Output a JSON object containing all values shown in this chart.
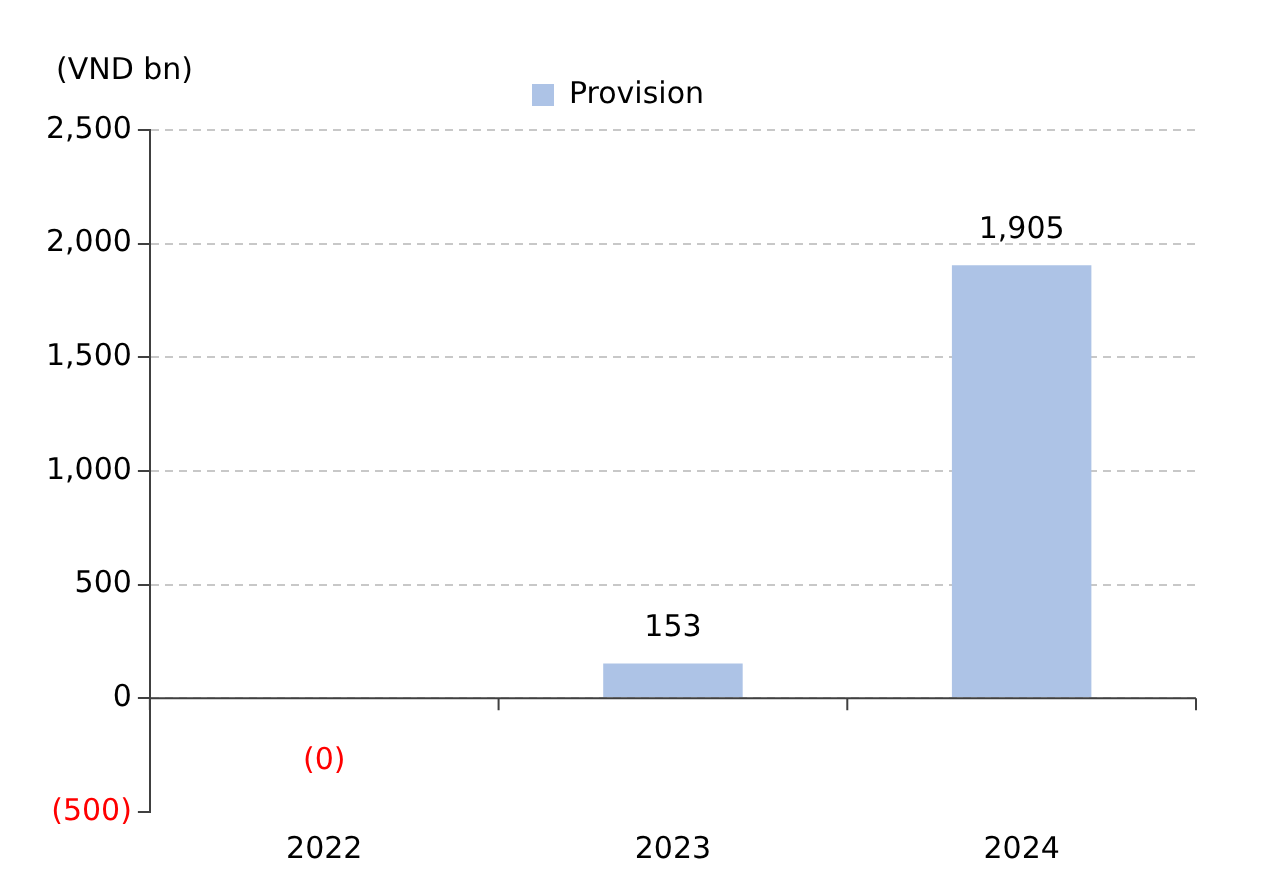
{
  "chart_data": {
    "type": "bar",
    "ylabel": "(VND bn)",
    "categories": [
      "2022",
      "2023",
      "2024"
    ],
    "series": [
      {
        "name": "Provision",
        "color": "#adc3e6",
        "values": [
          0,
          153,
          1905
        ],
        "value_labels": [
          "(0)",
          "153",
          "1,905"
        ]
      }
    ],
    "ylim": [
      -500,
      2500
    ],
    "yticks": [
      {
        "value": -500,
        "label": "(500)"
      },
      {
        "value": 0,
        "label": "0"
      },
      {
        "value": 500,
        "label": "500"
      },
      {
        "value": 1000,
        "label": "1,000"
      },
      {
        "value": 1500,
        "label": "1,500"
      },
      {
        "value": 2000,
        "label": "2,000"
      },
      {
        "value": 2500,
        "label": "2,500"
      }
    ],
    "grid": "y",
    "legend": "top"
  }
}
